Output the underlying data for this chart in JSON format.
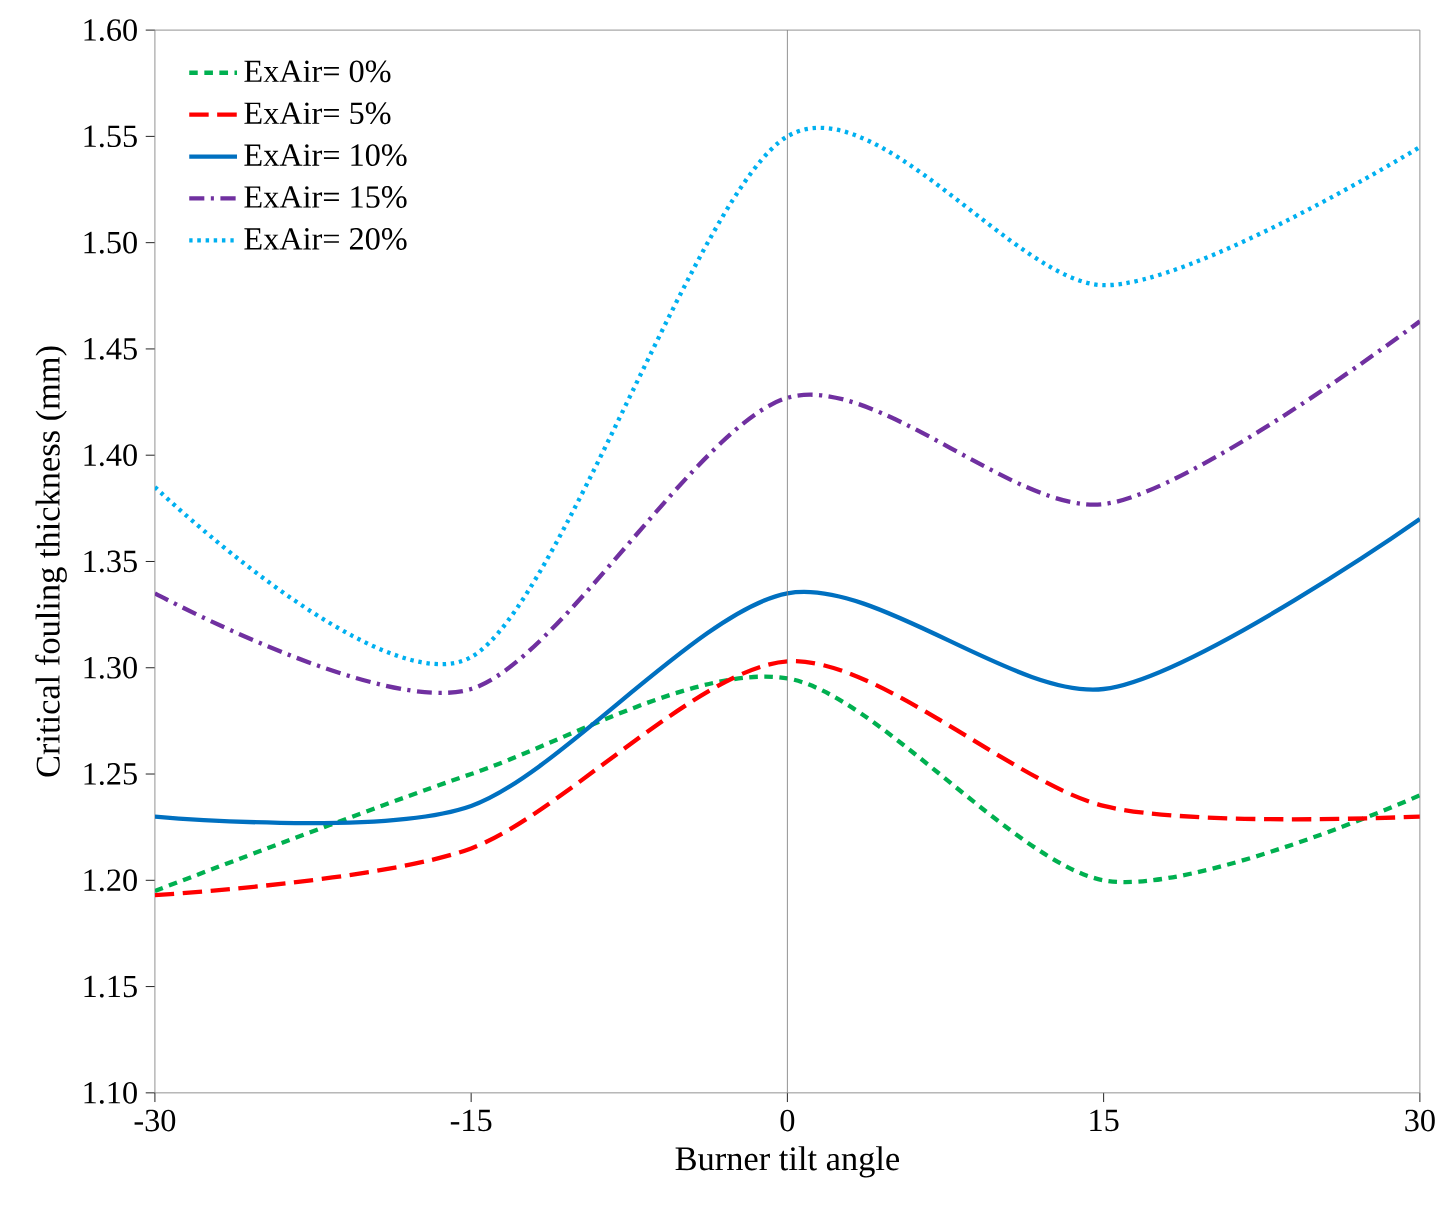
{
  "chart_data": {
    "type": "line",
    "xlabel": "Burner tilt angle",
    "ylabel": "Critical  fouling thickness  (mm)",
    "x": [
      -30,
      -15,
      0,
      15,
      30
    ],
    "series": [
      {
        "name": "ExAir= 0%",
        "color": "#00b050",
        "line_style": "dashed",
        "values": [
          1.195,
          1.25,
          1.295,
          1.2,
          1.24
        ]
      },
      {
        "name": "ExAir= 5%",
        "color": "#ff0000",
        "line_style": "longdashed",
        "values": [
          1.193,
          1.215,
          1.303,
          1.235,
          1.23
        ]
      },
      {
        "name": "ExAir= 10%",
        "color": "#0070c0",
        "line_style": "solid",
        "values": [
          1.23,
          1.235,
          1.335,
          1.29,
          1.37
        ]
      },
      {
        "name": "ExAir= 15%",
        "color": "#7030a0",
        "line_style": "dashdot",
        "values": [
          1.335,
          1.29,
          1.427,
          1.377,
          1.463
        ]
      },
      {
        "name": "ExAir= 20%",
        "color": "#00b0f0",
        "line_style": "dotted",
        "values": [
          1.385,
          1.305,
          1.55,
          1.48,
          1.545
        ]
      }
    ],
    "xlim": [
      -30,
      30
    ],
    "xticks": [
      -30,
      -15,
      0,
      15,
      30
    ],
    "ylim": [
      1.1,
      1.6
    ],
    "yticks": [
      {
        "value": 1.1,
        "label": "1.10"
      },
      {
        "value": 1.15,
        "label": "1.15"
      },
      {
        "value": 1.2,
        "label": "1.20"
      },
      {
        "value": 1.25,
        "label": "1.25"
      },
      {
        "value": 1.3,
        "label": "1.30"
      },
      {
        "value": 1.35,
        "label": "1.35"
      },
      {
        "value": 1.4,
        "label": "1.40"
      },
      {
        "value": 1.45,
        "label": "1.45"
      },
      {
        "value": 1.5,
        "label": "1.50"
      },
      {
        "value": 1.55,
        "label": "1.55"
      },
      {
        "value": 1.6,
        "label": "1.60"
      }
    ],
    "ref_lines": [
      {
        "axis": "x",
        "value": 0,
        "color": "#808080"
      }
    ],
    "legend": "top left",
    "grid": false,
    "marker": "none"
  }
}
